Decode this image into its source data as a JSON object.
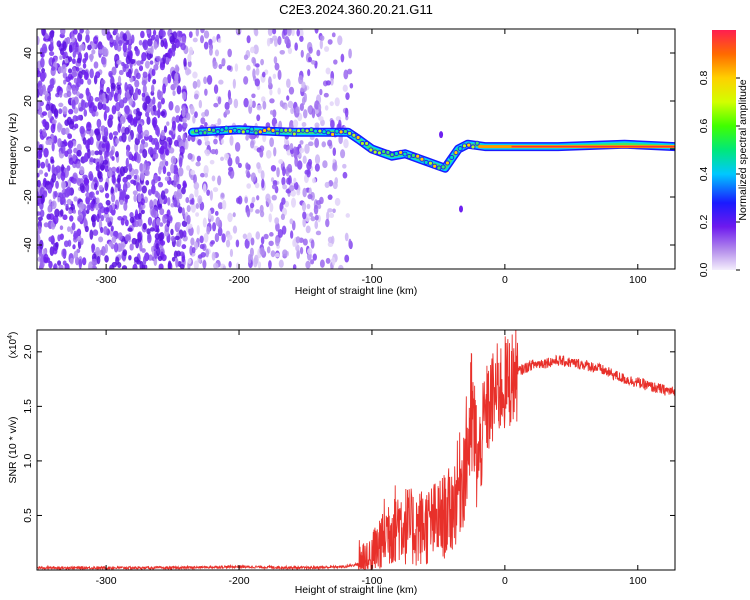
{
  "title": "C2E3.2024.360.20.21.G11",
  "chart_data": [
    {
      "type": "heatmap",
      "title": "C2E3.2024.360.20.21.G11",
      "xlabel": "Height of straight line (km)",
      "ylabel": "Frequency (Hz)",
      "xlim": [
        -352,
        128
      ],
      "ylim": [
        -50,
        50
      ],
      "x_ticks": [
        -300,
        -200,
        -100,
        0,
        100
      ],
      "y_ticks": [
        -40,
        -20,
        0,
        20,
        40
      ],
      "noise_band": {
        "x_from": -352,
        "x_to": -115,
        "y_from": -50,
        "y_to": 50
      },
      "signal_track": [
        {
          "x": -235,
          "y": 7
        },
        {
          "x": -200,
          "y": 8
        },
        {
          "x": -160,
          "y": 7
        },
        {
          "x": -130,
          "y": 7
        },
        {
          "x": -118,
          "y": 7
        },
        {
          "x": -110,
          "y": 4
        },
        {
          "x": -100,
          "y": 0
        },
        {
          "x": -85,
          "y": -3
        },
        {
          "x": -75,
          "y": -2
        },
        {
          "x": -60,
          "y": -5
        },
        {
          "x": -45,
          "y": -8
        },
        {
          "x": -40,
          "y": -4
        },
        {
          "x": -35,
          "y": 0
        },
        {
          "x": -28,
          "y": 2
        },
        {
          "x": -15,
          "y": 1
        },
        {
          "x": 0,
          "y": 1
        },
        {
          "x": 40,
          "y": 1
        },
        {
          "x": 90,
          "y": 2
        },
        {
          "x": 128,
          "y": 1
        }
      ],
      "isolated_blobs": [
        {
          "x": -33,
          "y": -25
        },
        {
          "x": -48,
          "y": 6
        }
      ],
      "colorbar": {
        "label": "Normalized spectral amplitude",
        "range": [
          0,
          1
        ],
        "ticks": [
          "0.0",
          "0.2",
          "0.4",
          "0.6",
          "0.8"
        ]
      }
    },
    {
      "type": "line",
      "xlabel": "Height of straight line (km)",
      "ylabel": "SNR (10 * v/v)",
      "y_scale_note": "(x10",
      "y_scale_exp": "4",
      "xlim": [
        -352,
        128
      ],
      "ylim": [
        0,
        2.2
      ],
      "x_ticks": [
        -300,
        -200,
        -100,
        0,
        100
      ],
      "y_ticks": [
        "0.5",
        "1.0",
        "1.5",
        "2.0"
      ],
      "color": "#e8302a",
      "series": [
        {
          "x": [
            -352,
            -300,
            -250,
            -200,
            -150,
            -120,
            -100,
            -90,
            -80,
            -70,
            -60,
            -50,
            -40,
            -30,
            -25,
            -20,
            -15,
            -10,
            -5,
            0,
            5,
            10,
            20,
            30,
            40,
            50,
            60,
            70,
            80,
            90,
            100,
            110,
            120,
            128
          ],
          "y": [
            0.02,
            0.02,
            0.02,
            0.03,
            0.02,
            0.03,
            0.08,
            0.35,
            0.45,
            0.38,
            0.4,
            0.45,
            0.55,
            0.95,
            1.4,
            0.95,
            1.4,
            1.55,
            1.65,
            1.7,
            1.75,
            1.82,
            1.88,
            1.9,
            1.92,
            1.9,
            1.88,
            1.85,
            1.8,
            1.75,
            1.72,
            1.68,
            1.65,
            1.63
          ]
        }
      ]
    }
  ]
}
